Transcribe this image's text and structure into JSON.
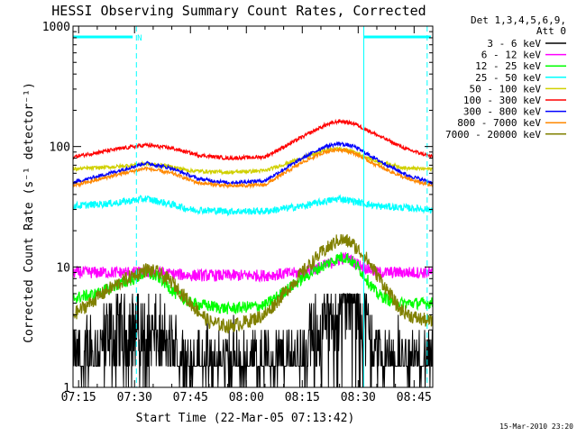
{
  "chart_data": {
    "type": "line",
    "title": "HESSI Observing Summary Count Rates, Corrected",
    "xlabel": "Start Time (22-Mar-05 07:13:42)",
    "ylabel": "Corrected Count Rate (s⁻¹ detector⁻¹)",
    "x_range_minutes": [
      -1.5,
      95
    ],
    "ylim": [
      1,
      1000
    ],
    "yscale": "log",
    "x_ticks": [
      {
        "label": "07:15",
        "minute": 0
      },
      {
        "label": "07:30",
        "minute": 15
      },
      {
        "label": "07:45",
        "minute": 30
      },
      {
        "label": "08:00",
        "minute": 45
      },
      {
        "label": "08:15",
        "minute": 60
      },
      {
        "label": "08:30",
        "minute": 75
      },
      {
        "label": "08:45",
        "minute": 90
      }
    ],
    "y_ticks": [
      {
        "label": "1",
        "value": 1
      },
      {
        "label": "10",
        "value": 10
      },
      {
        "label": "100",
        "value": 100
      },
      {
        "label": "1000",
        "value": 1000
      }
    ],
    "legend": {
      "position": "right",
      "header": [
        "Det 1,3,4,5,6,9,",
        "Att 0"
      ]
    },
    "series": [
      {
        "name": "3 - 6 keV",
        "color": "#000000",
        "noise": 0.6,
        "points": [
          [
            -1.5,
            1.5
          ],
          [
            5,
            2.0
          ],
          [
            10,
            2.5
          ],
          [
            15,
            3.0
          ],
          [
            20,
            2.5
          ],
          [
            25,
            1.8
          ],
          [
            30,
            1.5
          ],
          [
            40,
            1.5
          ],
          [
            50,
            1.5
          ],
          [
            58,
            1.6
          ],
          [
            65,
            3.0
          ],
          [
            70,
            4.0
          ],
          [
            73,
            5.5
          ],
          [
            75,
            4.5
          ],
          [
            78,
            2.5
          ],
          [
            82,
            1.5
          ],
          [
            95,
            1.5
          ]
        ]
      },
      {
        "name": "6 - 12 keV",
        "color": "#ff00ff",
        "noise": 0.1,
        "points": [
          [
            -1.5,
            9
          ],
          [
            10,
            9
          ],
          [
            20,
            9
          ],
          [
            30,
            8.5
          ],
          [
            40,
            8.5
          ],
          [
            50,
            8.5
          ],
          [
            60,
            9
          ],
          [
            65,
            10
          ],
          [
            70,
            11.5
          ],
          [
            72,
            12
          ],
          [
            75,
            10.5
          ],
          [
            80,
            9
          ],
          [
            95,
            9
          ]
        ]
      },
      {
        "name": "12 - 25 keV",
        "color": "#00ff00",
        "noise": 0.1,
        "points": [
          [
            -1.5,
            5.5
          ],
          [
            5,
            6
          ],
          [
            10,
            7
          ],
          [
            15,
            8
          ],
          [
            18,
            9
          ],
          [
            22,
            8
          ],
          [
            26,
            6
          ],
          [
            30,
            5
          ],
          [
            40,
            4.5
          ],
          [
            50,
            4.8
          ],
          [
            60,
            8
          ],
          [
            65,
            10
          ],
          [
            70,
            12
          ],
          [
            72,
            12
          ],
          [
            75,
            10
          ],
          [
            80,
            6
          ],
          [
            85,
            5
          ],
          [
            95,
            5
          ]
        ]
      },
      {
        "name": "25 - 50 keV",
        "color": "#00ffff",
        "noise": 0.06,
        "points": [
          [
            -1.5,
            32
          ],
          [
            10,
            34
          ],
          [
            18,
            37
          ],
          [
            25,
            33
          ],
          [
            30,
            30
          ],
          [
            40,
            29
          ],
          [
            50,
            29
          ],
          [
            60,
            32
          ],
          [
            66,
            35
          ],
          [
            70,
            37
          ],
          [
            74,
            35
          ],
          [
            80,
            32
          ],
          [
            95,
            30
          ]
        ]
      },
      {
        "name": "50 - 100 keV",
        "color": "#d0d000",
        "noise": 0.03,
        "points": [
          [
            -1.5,
            65
          ],
          [
            10,
            68
          ],
          [
            18,
            72
          ],
          [
            25,
            68
          ],
          [
            30,
            63
          ],
          [
            40,
            61
          ],
          [
            50,
            63
          ],
          [
            60,
            80
          ],
          [
            66,
            93
          ],
          [
            70,
            96
          ],
          [
            74,
            90
          ],
          [
            80,
            75
          ],
          [
            88,
            66
          ],
          [
            95,
            65
          ]
        ]
      },
      {
        "name": "100 - 300 keV",
        "color": "#ff0000",
        "noise": 0.03,
        "points": [
          [
            -1.5,
            82
          ],
          [
            10,
            95
          ],
          [
            18,
            103
          ],
          [
            25,
            97
          ],
          [
            32,
            85
          ],
          [
            40,
            80
          ],
          [
            50,
            82
          ],
          [
            60,
            120
          ],
          [
            66,
            150
          ],
          [
            70,
            163
          ],
          [
            74,
            155
          ],
          [
            80,
            125
          ],
          [
            88,
            95
          ],
          [
            95,
            82
          ]
        ]
      },
      {
        "name": "300 - 800 keV",
        "color": "#0000ff",
        "noise": 0.03,
        "points": [
          [
            -1.5,
            50
          ],
          [
            10,
            62
          ],
          [
            18,
            73
          ],
          [
            25,
            66
          ],
          [
            32,
            54
          ],
          [
            40,
            50
          ],
          [
            50,
            52
          ],
          [
            60,
            80
          ],
          [
            66,
            100
          ],
          [
            70,
            106
          ],
          [
            74,
            100
          ],
          [
            80,
            78
          ],
          [
            88,
            58
          ],
          [
            95,
            50
          ]
        ]
      },
      {
        "name": "800 - 7000 keV",
        "color": "#ff8800",
        "noise": 0.03,
        "points": [
          [
            -1.5,
            47
          ],
          [
            10,
            58
          ],
          [
            18,
            66
          ],
          [
            25,
            60
          ],
          [
            32,
            50
          ],
          [
            40,
            47
          ],
          [
            50,
            48
          ],
          [
            60,
            74
          ],
          [
            66,
            90
          ],
          [
            70,
            95
          ],
          [
            74,
            88
          ],
          [
            80,
            70
          ],
          [
            88,
            54
          ],
          [
            95,
            47
          ]
        ]
      },
      {
        "name": "7000 - 20000 keV",
        "color": "#808000",
        "noise": 0.12,
        "points": [
          [
            -1.5,
            4
          ],
          [
            3,
            5
          ],
          [
            8,
            6.5
          ],
          [
            13,
            8
          ],
          [
            18,
            9.5
          ],
          [
            21,
            9
          ],
          [
            25,
            7.5
          ],
          [
            30,
            5
          ],
          [
            35,
            3.5
          ],
          [
            40,
            3.2
          ],
          [
            45,
            3.5
          ],
          [
            50,
            4
          ],
          [
            55,
            6
          ],
          [
            60,
            9
          ],
          [
            65,
            13
          ],
          [
            70,
            17
          ],
          [
            73,
            16
          ],
          [
            77,
            12
          ],
          [
            82,
            7
          ],
          [
            86,
            4.5
          ],
          [
            90,
            3.8
          ],
          [
            95,
            3.5
          ]
        ]
      }
    ],
    "annotations": {
      "solid_lines_minutes": [
        -1.5,
        76.5
      ],
      "dashed_lines_minutes": [
        15.5,
        93.5
      ],
      "top_bars": [
        [
          -1.5,
          14.5
        ],
        [
          76.5,
          94.5
        ]
      ],
      "top_bar_label": "N",
      "line_color": "#00ffff"
    }
  },
  "footer": {
    "timestamp": "15-Mar-2010 23:20"
  }
}
